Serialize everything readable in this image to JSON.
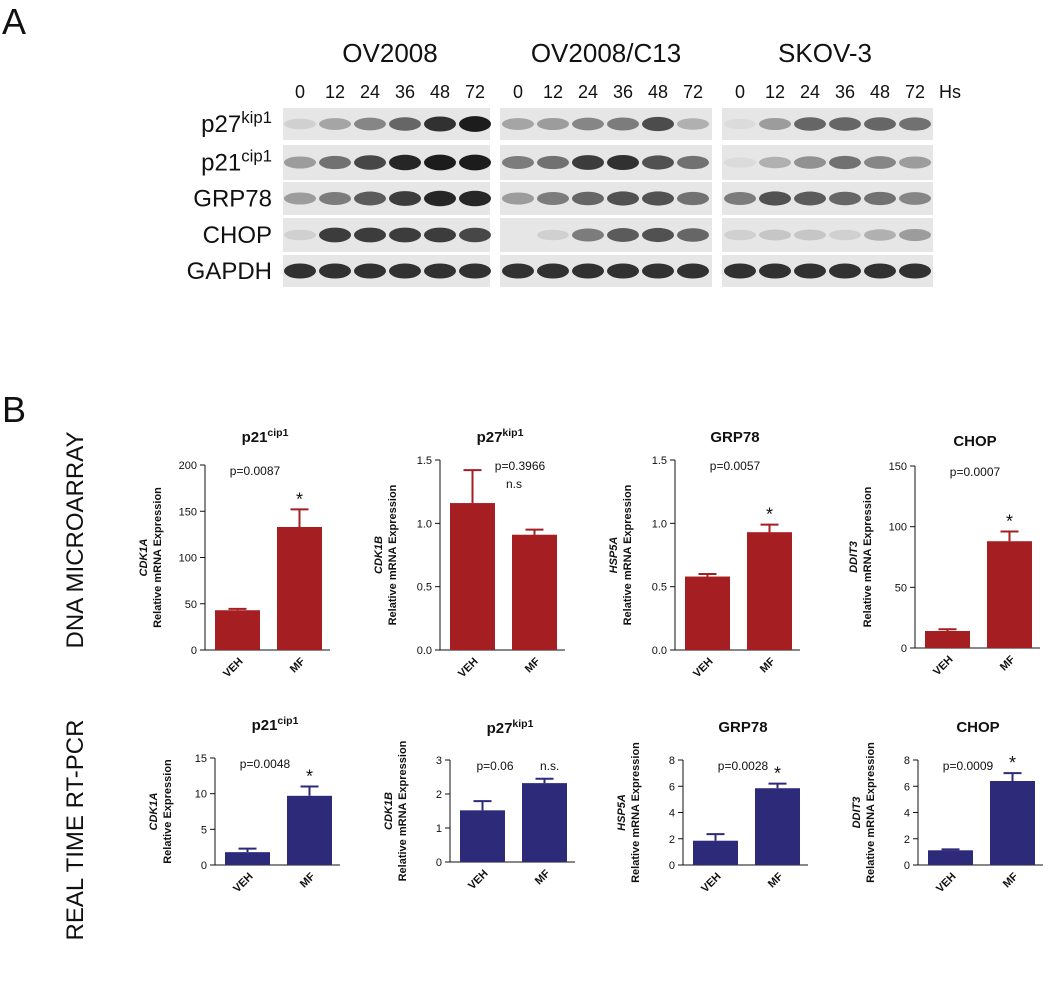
{
  "panel_labels": [
    "A",
    "B"
  ],
  "blot": {
    "cell_lines": [
      "OV2008",
      "OV2008/C13",
      "SKOV-3"
    ],
    "time_points": [
      "0",
      "12",
      "24",
      "36",
      "48",
      "72"
    ],
    "time_unit": "Hs",
    "proteins": [
      {
        "name": "p27",
        "superscript": "kip1"
      },
      {
        "name": "p21",
        "superscript": "cip1"
      },
      {
        "name": "GRP78"
      },
      {
        "name": "CHOP"
      },
      {
        "name": "GAPDH"
      }
    ]
  },
  "row_labels": [
    "DNA MICROARRAY",
    "REAL TIME RT-PCR"
  ],
  "chart_data": [
    {
      "type": "bar",
      "title": "p21",
      "title_superscript": "cip1",
      "y_label_gene": "CDK1A",
      "y_label": "Relative mRNA Expression",
      "categories": [
        "VEH",
        "MF"
      ],
      "values": [
        43,
        133
      ],
      "errors": [
        1.5,
        19
      ],
      "color": "#a41e22",
      "ylim": [
        0,
        200
      ],
      "yticks": [
        0,
        50,
        100,
        150,
        200
      ],
      "p_value": "p=0.0087",
      "significance": "*"
    },
    {
      "type": "bar",
      "title": "p27",
      "title_superscript": "kip1",
      "y_label_gene": "CDK1B",
      "y_label": "Relative mRNA Expression",
      "categories": [
        "VEH",
        "MF"
      ],
      "values": [
        1.16,
        0.91
      ],
      "errors": [
        0.26,
        0.04
      ],
      "color": "#a41e22",
      "ylim": [
        0,
        1.5
      ],
      "yticks": [
        {
          "value": 0,
          "label": "0.0"
        },
        0.5,
        {
          "value": 1,
          "label": "1.0"
        },
        1.5
      ],
      "p_value": "p=0.3966",
      "significance": "n.s"
    },
    {
      "type": "bar",
      "title": "GRP78",
      "y_label_gene": "HSP5A",
      "y_label": "Relative mRNA Expression",
      "categories": [
        "VEH",
        "MF"
      ],
      "values": [
        0.58,
        0.93
      ],
      "errors": [
        0.02,
        0.06
      ],
      "color": "#a41e22",
      "ylim": [
        0,
        1.5
      ],
      "yticks": [
        {
          "value": 0,
          "label": "0.0"
        },
        0.5,
        {
          "value": 1,
          "label": "1.0"
        },
        1.5
      ],
      "p_value": "p=0.0057",
      "significance": "*"
    },
    {
      "type": "bar",
      "title": "CHOP",
      "y_label_gene": "DDIT3",
      "y_label": "Relative mRNA Expression",
      "categories": [
        "VEH",
        "MF"
      ],
      "values": [
        14,
        88
      ],
      "errors": [
        1.5,
        8
      ],
      "color": "#a41e22",
      "ylim": [
        0,
        150
      ],
      "yticks": [
        0,
        50,
        100,
        150
      ],
      "p_value": "p=0.0007",
      "significance": "*"
    },
    {
      "type": "bar",
      "title": "p21",
      "title_superscript": "cip1",
      "y_label_gene": "CDK1A",
      "y_label": "Relative Expression",
      "categories": [
        "VEH",
        "MF"
      ],
      "values": [
        1.8,
        9.7
      ],
      "errors": [
        0.5,
        1.3
      ],
      "color": "#2d2a7a",
      "ylim": [
        0,
        15
      ],
      "yticks": [
        0,
        5,
        10,
        15
      ],
      "p_value": "p=0.0048",
      "significance": "*"
    },
    {
      "type": "bar",
      "title": "p27",
      "title_superscript": "kip1",
      "y_label_gene": "CDK1B",
      "y_label": "Relative mRNA Expression",
      "categories": [
        "VEH",
        "MF"
      ],
      "values": [
        1.52,
        2.32
      ],
      "errors": [
        0.27,
        0.13
      ],
      "color": "#2d2a7a",
      "ylim": [
        0,
        3
      ],
      "yticks": [
        0,
        1,
        2,
        3
      ],
      "p_value": "p=0.06",
      "significance": "n.s."
    },
    {
      "type": "bar",
      "title": "GRP78",
      "y_label_gene": "HSP5A",
      "y_label": "Relative mRNA Expression",
      "categories": [
        "VEH",
        "MF"
      ],
      "values": [
        1.85,
        5.85
      ],
      "errors": [
        0.5,
        0.35
      ],
      "color": "#2d2a7a",
      "ylim": [
        0,
        8
      ],
      "yticks": [
        0,
        2,
        4,
        6,
        8
      ],
      "p_value": "p=0.0028",
      "significance": "*"
    },
    {
      "type": "bar",
      "title": "CHOP",
      "y_label_gene": "DDIT3",
      "y_label": "Relative mRNA Expression",
      "categories": [
        "VEH",
        "MF"
      ],
      "values": [
        1.12,
        6.4
      ],
      "errors": [
        0.07,
        0.6
      ],
      "color": "#2d2a7a",
      "ylim": [
        0,
        8
      ],
      "yticks": [
        0,
        2,
        4,
        6,
        8
      ],
      "p_value": "p=0.0009",
      "significance": "*"
    }
  ]
}
